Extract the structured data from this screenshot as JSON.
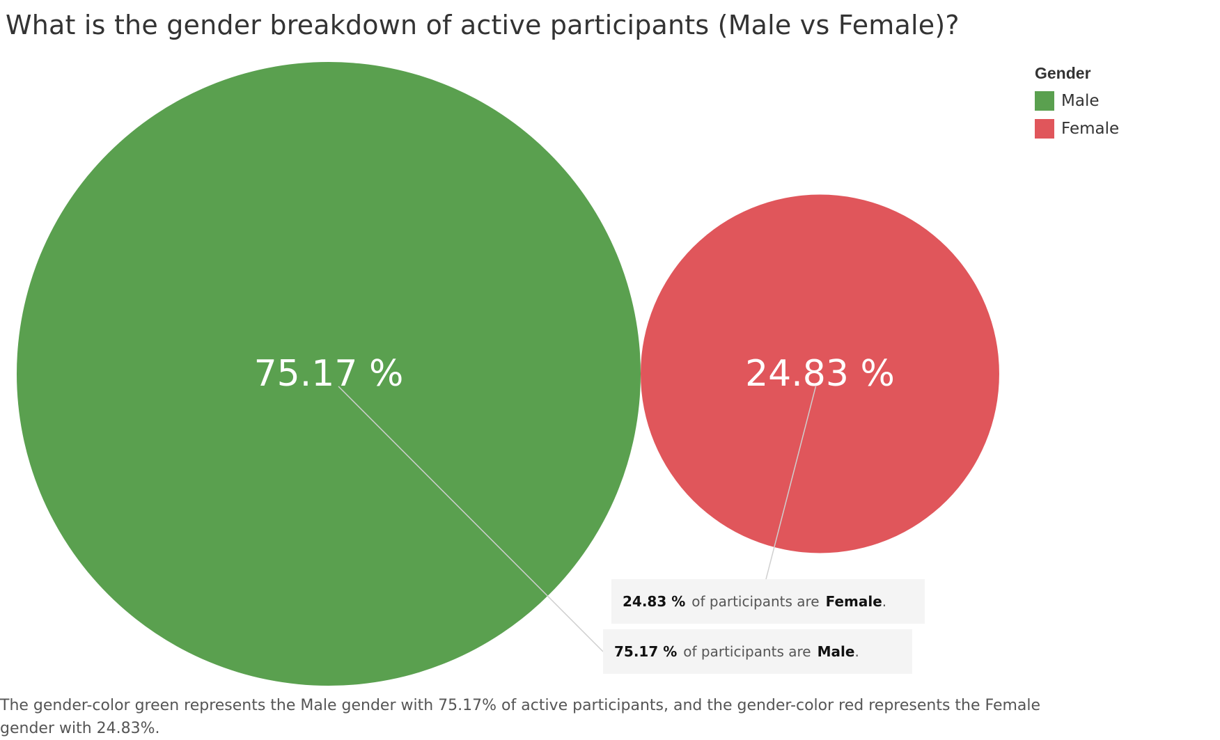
{
  "title": "What is the gender breakdown of active participants (Male vs Female)?",
  "legend": {
    "title": "Gender",
    "items": [
      {
        "label": "Male",
        "color": "#5aa04f"
      },
      {
        "label": "Female",
        "color": "#e0565b"
      }
    ]
  },
  "tooltips": [
    {
      "value": "24.83 %",
      "text": "of participants are",
      "gender": "Female",
      "end": "."
    },
    {
      "value": "75.17 %",
      "text": "of participants are",
      "gender": "Male",
      "end": "."
    }
  ],
  "caption": "The gender-color green represents the Male gender with 75.17% of active participants, and the gender-color red represents the Female gender with 24.83%.",
  "chart_data": {
    "type": "bubble",
    "title": "What is the gender breakdown of active participants (Male vs Female)?",
    "categories": [
      "Male",
      "Female"
    ],
    "values": [
      75.17,
      24.83
    ],
    "labels": [
      "75.17 %",
      "24.83 %"
    ],
    "colors": [
      "#5aa04f",
      "#e0565b"
    ],
    "legend_position": "top-right",
    "grid": false
  }
}
